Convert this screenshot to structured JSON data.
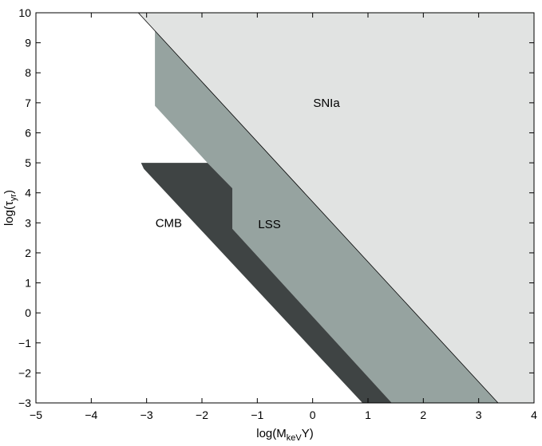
{
  "chart_data": {
    "type": "area",
    "xlim": [
      -5,
      4
    ],
    "ylim": [
      -3,
      10
    ],
    "xticks": [
      -5,
      -4,
      -3,
      -2,
      -1,
      0,
      1,
      2,
      3,
      4
    ],
    "yticks": [
      -3,
      -2,
      -1,
      0,
      1,
      2,
      3,
      4,
      5,
      6,
      7,
      8,
      9,
      10
    ],
    "xlabel": {
      "pre": "log(M",
      "sub": "keV",
      "post": "Y)"
    },
    "ylabel": {
      "pre": "log(τ",
      "sub": "yr",
      "post": ")"
    },
    "grid": false,
    "series": [
      {
        "name": "SNIa",
        "color": "#e1e3e2",
        "label_at": [
          0.25,
          7
        ],
        "polygon": [
          [
            -3.15,
            10
          ],
          [
            4,
            10
          ],
          [
            4,
            -3
          ],
          [
            3.35,
            -3
          ]
        ]
      },
      {
        "name": "LSS",
        "color": "#96a3a0",
        "label_at": [
          -0.78,
          2.95
        ],
        "polygon": [
          [
            -2.85,
            9.4
          ],
          [
            3.35,
            -3
          ],
          [
            1.43,
            -3
          ],
          [
            -1.45,
            2.8
          ],
          [
            -1.45,
            4.15
          ],
          [
            -1.9,
            5
          ],
          [
            -2.85,
            6.9
          ]
        ]
      },
      {
        "name": "CMB",
        "color": "#3f4444",
        "label_at": [
          -2.6,
          3
        ],
        "polygon": [
          [
            -3.1,
            5
          ],
          [
            -1.9,
            5
          ],
          [
            -1.45,
            4.15
          ],
          [
            -1.45,
            2.8
          ],
          [
            1.43,
            -3
          ],
          [
            0.9,
            -3
          ],
          [
            -3.05,
            4.8
          ]
        ]
      }
    ]
  }
}
